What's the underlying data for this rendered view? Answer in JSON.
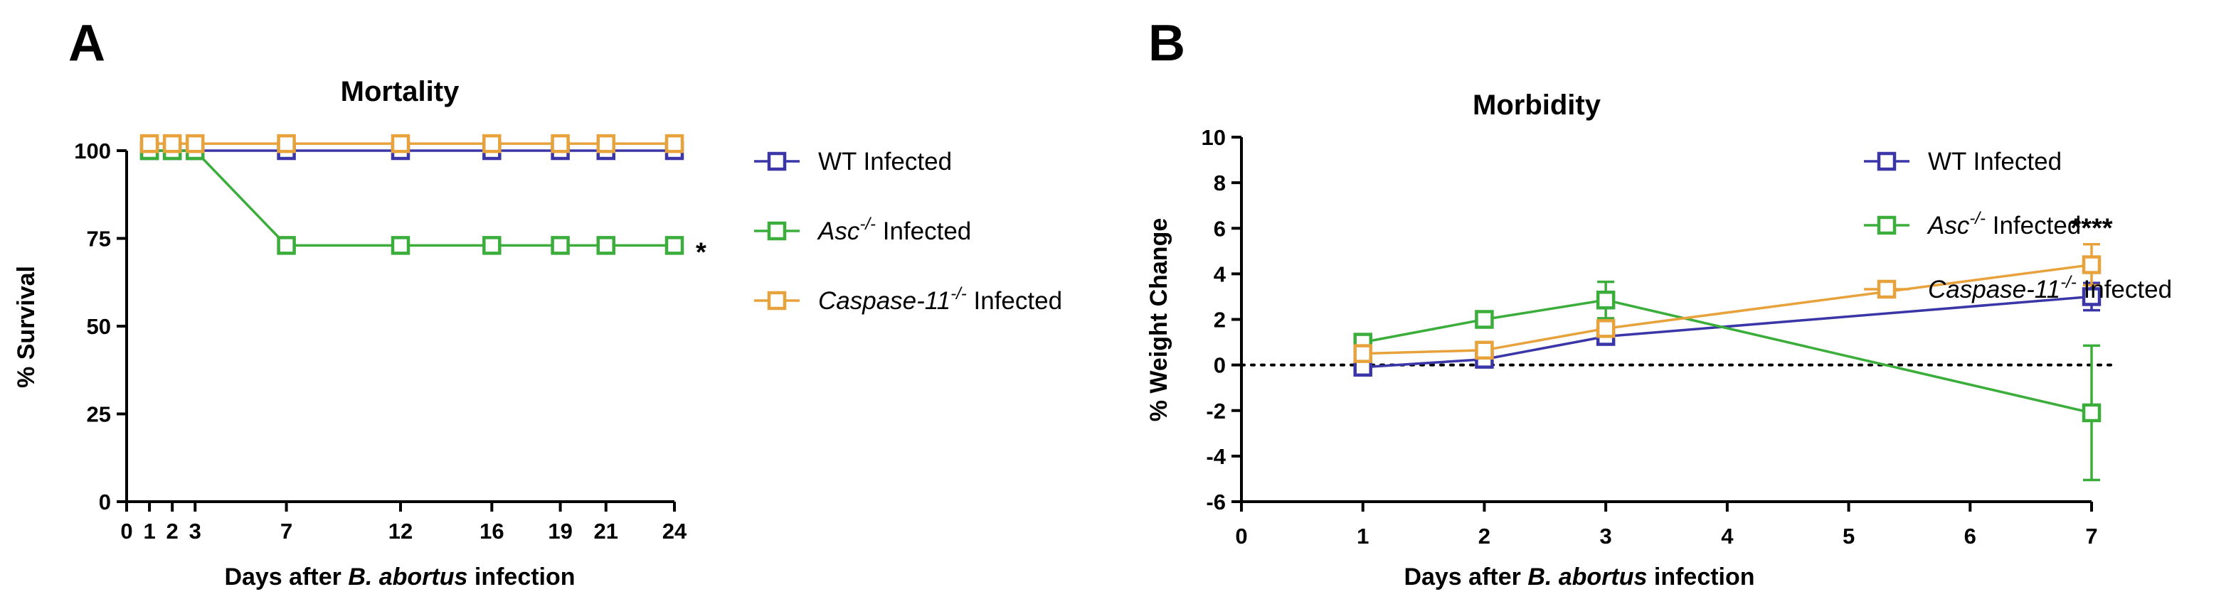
{
  "chart_data": [
    {
      "panel": "A",
      "type": "line",
      "title": "Mortality",
      "xlabel_parts": [
        "Days after ",
        "B. abortus",
        " infection"
      ],
      "ylabel": "% Survival",
      "xlim": [
        0,
        24
      ],
      "ylim": [
        0,
        100
      ],
      "xticks": [
        0,
        1,
        2,
        3,
        7,
        12,
        16,
        19,
        21,
        24
      ],
      "yticks": [
        0,
        25,
        50,
        75,
        100
      ],
      "series": [
        {
          "key": "wt",
          "name_parts": [
            "WT Infected"
          ],
          "color": "#3a36a8",
          "x": [
            1,
            2,
            3,
            7,
            12,
            16,
            19,
            21,
            24
          ],
          "values": [
            100,
            100,
            100,
            100,
            100,
            100,
            100,
            100,
            100
          ]
        },
        {
          "key": "asc",
          "name_parts": [
            "Asc",
            "-/-",
            " Infected"
          ],
          "color": "#3aad3a",
          "x": [
            1,
            2,
            3,
            7,
            12,
            16,
            19,
            21,
            24
          ],
          "values": [
            100,
            100,
            100,
            73,
            73,
            73,
            73,
            73,
            73
          ]
        },
        {
          "key": "casp",
          "name_parts": [
            "Caspase-11",
            "-/-",
            " Infected"
          ],
          "color": "#e8a23c",
          "x": [
            1,
            2,
            3,
            7,
            12,
            16,
            19,
            21,
            24
          ],
          "values": [
            102,
            102,
            102,
            102,
            102,
            102,
            102,
            102,
            102
          ]
        }
      ],
      "annotation": {
        "text": "*",
        "x": 24,
        "y": 73
      }
    },
    {
      "panel": "B",
      "type": "line",
      "title": "Morbidity",
      "xlabel_parts": [
        "Days after ",
        "B. abortus",
        " infection"
      ],
      "ylabel": "% Weight  Change",
      "xlim": [
        0,
        7
      ],
      "ylim": [
        -6,
        10
      ],
      "xticks": [
        0,
        1,
        2,
        3,
        4,
        5,
        6,
        7
      ],
      "yticks": [
        -6,
        -4,
        -2,
        0,
        2,
        4,
        6,
        8,
        10
      ],
      "reference_line": 0,
      "series": [
        {
          "key": "wt",
          "name_parts": [
            "WT Infected"
          ],
          "color": "#3a36a8",
          "x": [
            1,
            2,
            3,
            7
          ],
          "values": [
            -0.1,
            0.25,
            1.25,
            3.0
          ],
          "errors": [
            0.2,
            0.2,
            0.2,
            0.6
          ]
        },
        {
          "key": "asc",
          "name_parts": [
            "Asc",
            "-/-",
            " Infected"
          ],
          "color": "#3aad3a",
          "x": [
            1,
            2,
            3,
            7
          ],
          "values": [
            1.0,
            2.0,
            2.85,
            -2.1
          ],
          "errors": [
            0.2,
            0.25,
            0.8,
            2.95
          ]
        },
        {
          "key": "casp",
          "name_parts": [
            "Caspase-11",
            "-/-",
            " Infected"
          ],
          "color": "#e8a23c",
          "x": [
            1,
            2,
            3,
            7
          ],
          "values": [
            0.5,
            0.65,
            1.6,
            4.4
          ],
          "errors": [
            0.2,
            0.2,
            0.25,
            0.9
          ]
        }
      ],
      "annotation": {
        "text": "****",
        "x": 7,
        "y": 6
      }
    }
  ]
}
